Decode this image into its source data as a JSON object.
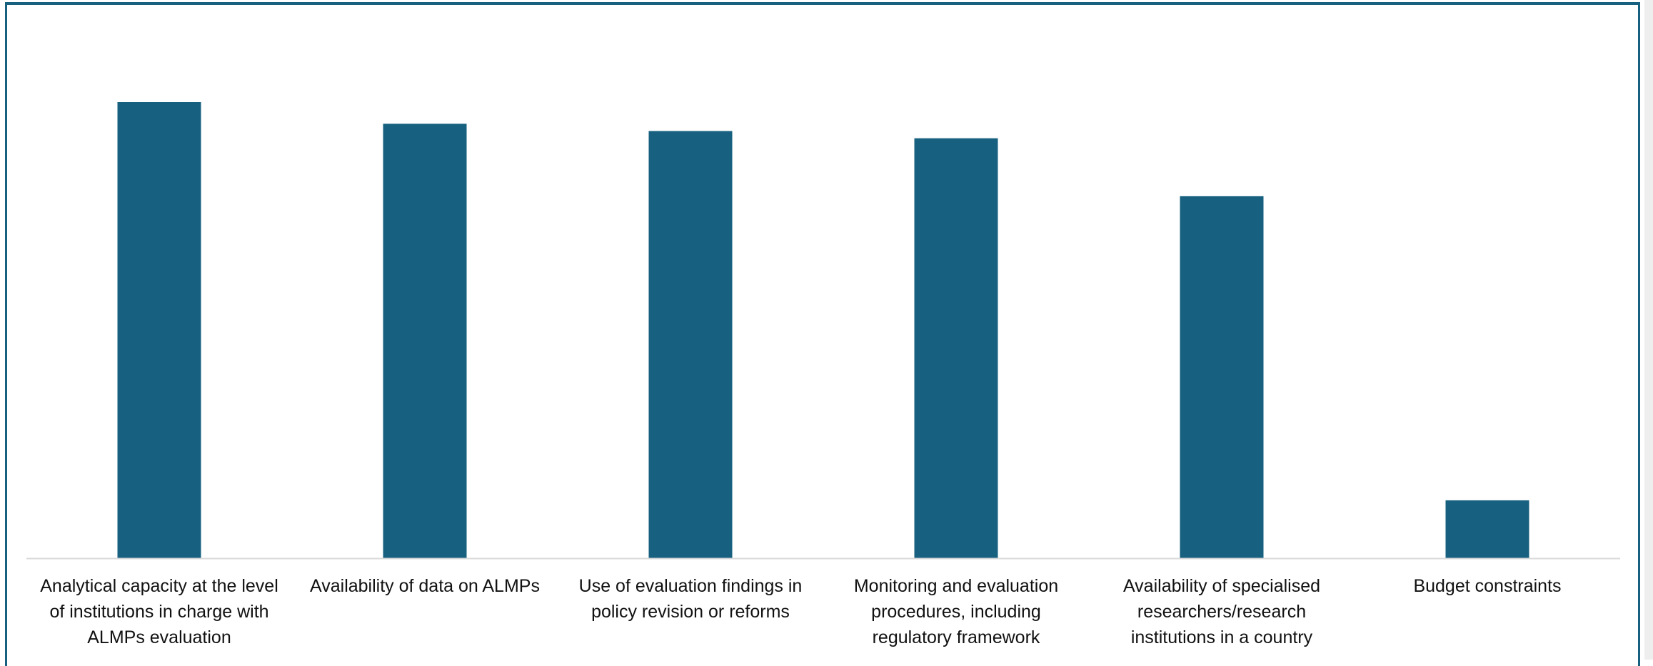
{
  "colors": {
    "bar": "#17607f",
    "frame": "#17607f",
    "axis": "#d9d9d9",
    "text": "#111111"
  },
  "chart_data": {
    "type": "bar",
    "categories": [
      "Analytical capacity at the level of institutions in charge with ALMPs evaluation",
      "Availability of data on ALMPs",
      "Use of evaluation findings in policy revision or reforms",
      "Monitoring and evaluation procedures, including regulatory framework",
      "Availability of specialised researchers/research institutions in a country",
      "Budget constraints"
    ],
    "category_lines": [
      [
        "Analytical capacity at the level",
        "of institutions in charge with",
        "ALMPs evaluation"
      ],
      [
        "Availability of data on ALMPs"
      ],
      [
        "Use of evaluation findings in",
        "policy revision or reforms"
      ],
      [
        "Monitoring and evaluation",
        "procedures, including",
        "regulatory framework"
      ],
      [
        "Availability of specialised",
        "researchers/research",
        "institutions in a country"
      ],
      [
        "Budget constraints"
      ]
    ],
    "values": [
      63,
      60,
      59,
      58,
      50,
      8
    ],
    "ylim": [
      0,
      70
    ],
    "title": "",
    "xlabel": "",
    "ylabel": "",
    "grid": false,
    "legend": "none"
  }
}
